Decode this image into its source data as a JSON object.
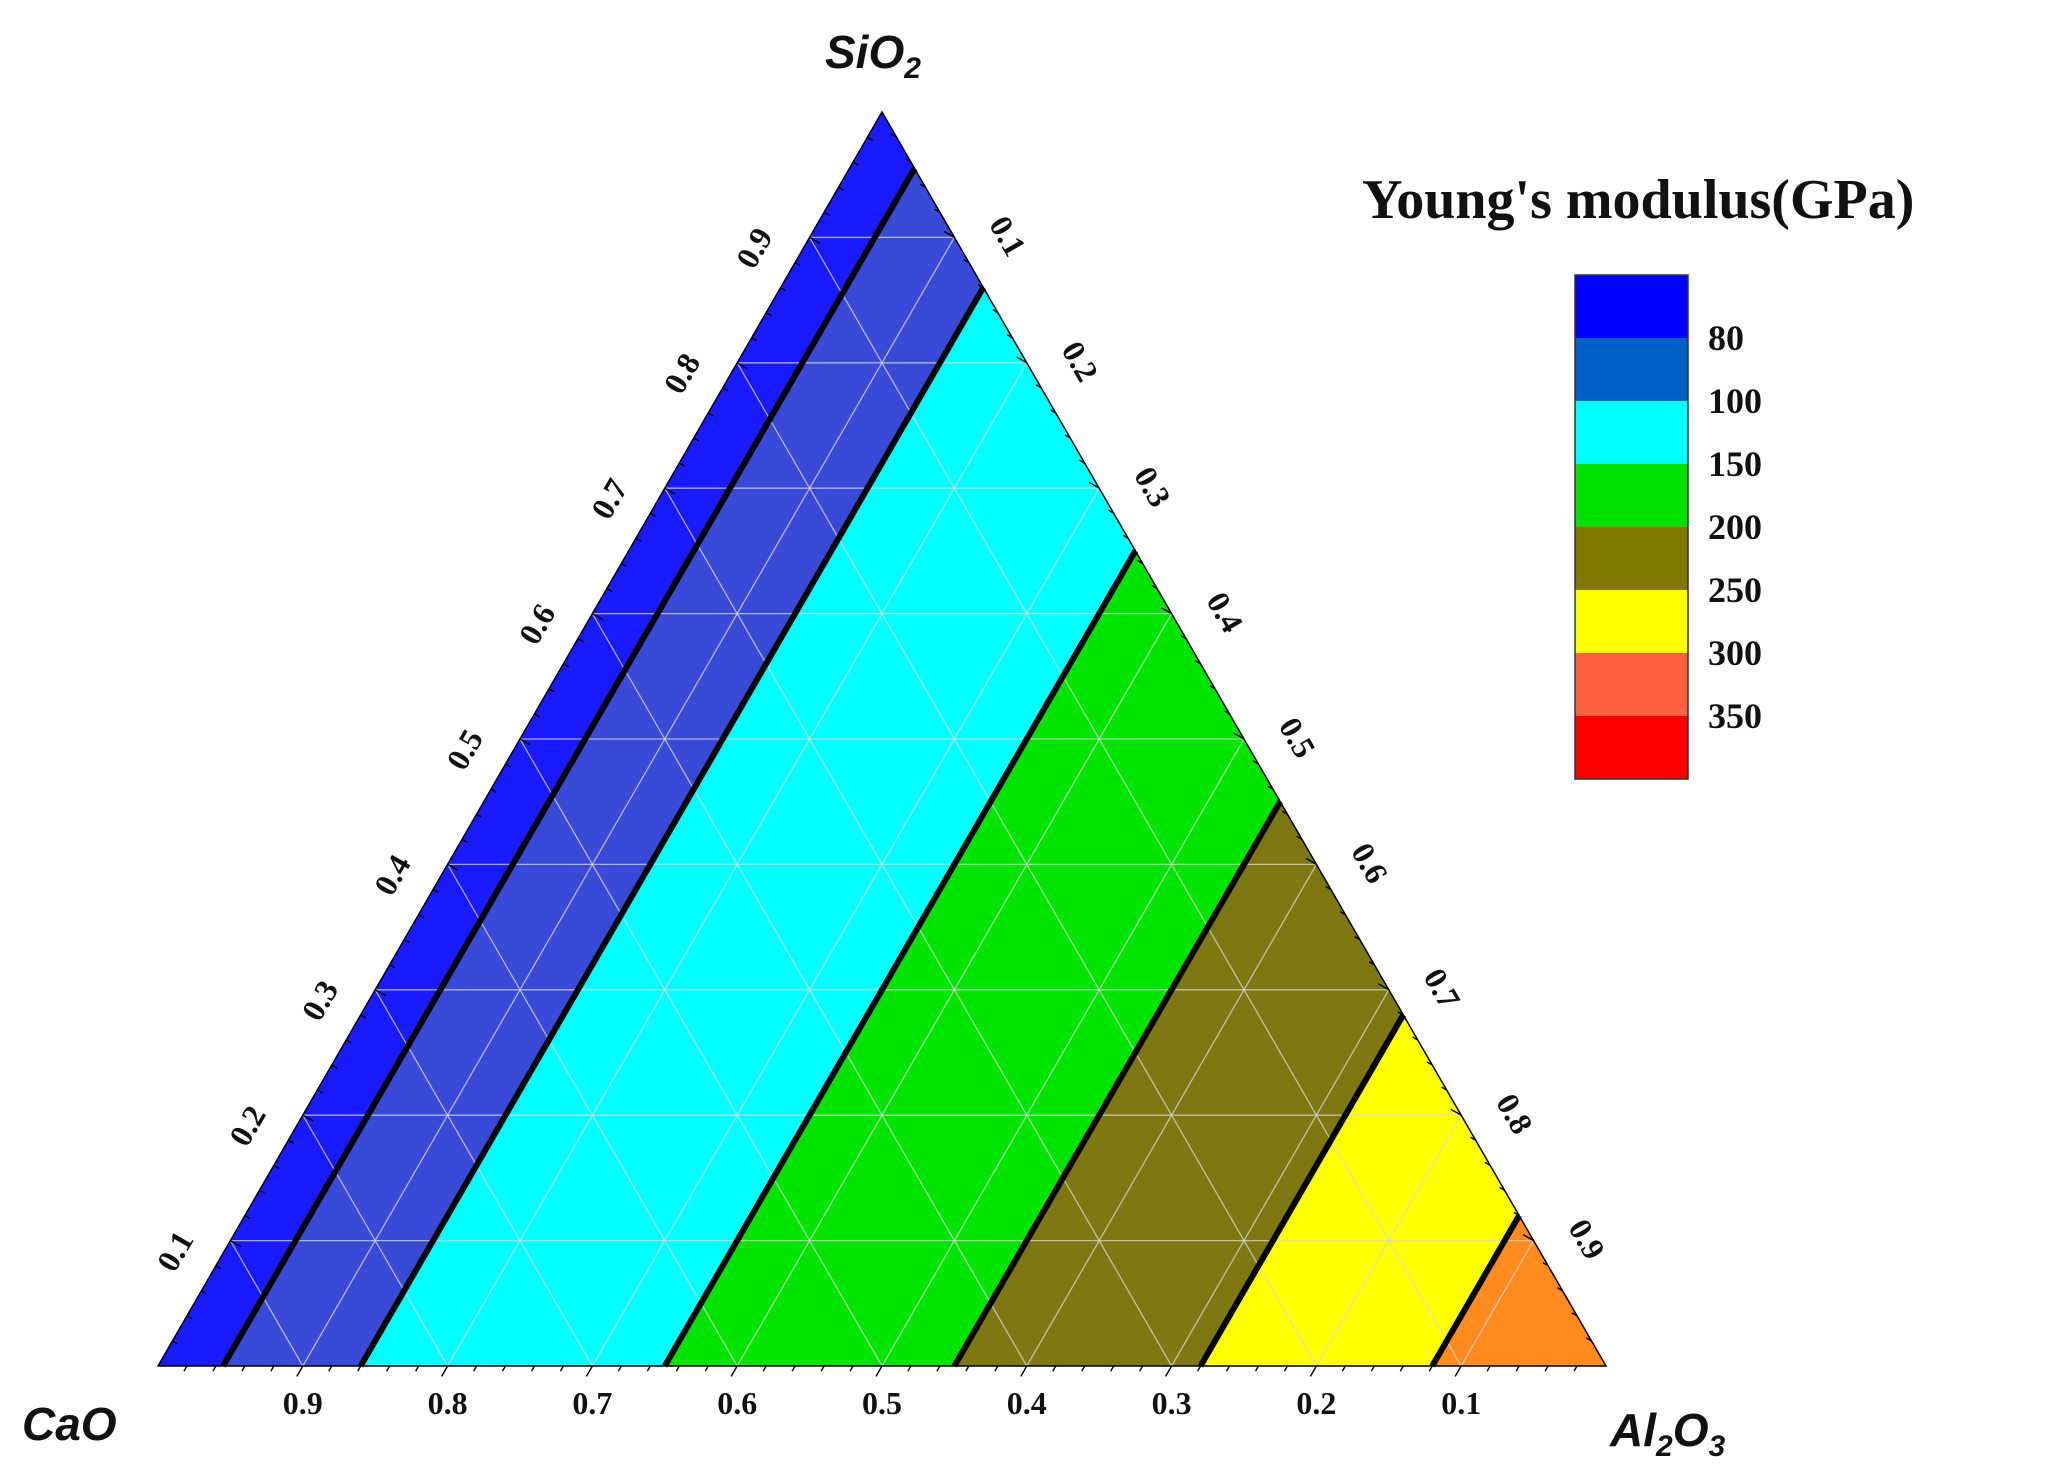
{
  "chart_data": {
    "type": "ternary",
    "apex_labels": {
      "top": {
        "base": "SiO",
        "sub": "2"
      },
      "left": {
        "base": "CaO",
        "sub": ""
      },
      "right": {
        "base": "Al",
        "sub": "2",
        "base2": "O",
        "sub2": "3"
      }
    },
    "tick_values": [
      0.1,
      0.2,
      0.3,
      0.4,
      0.5,
      0.6,
      0.7,
      0.8,
      0.9
    ],
    "left_edge_labels": [
      "0.1",
      "0.2",
      "0.3",
      "0.4",
      "0.5",
      "0.6",
      "0.7",
      "0.8",
      "0.9"
    ],
    "right_edge_labels": [
      "0.1",
      "0.2",
      "0.3",
      "0.4",
      "0.5",
      "0.6",
      "0.7",
      "0.8",
      "0.9"
    ],
    "bottom_edge_labels": [
      "0.9",
      "0.8",
      "0.7",
      "0.6",
      "0.5",
      "0.4",
      "0.3",
      "0.2",
      "0.1"
    ],
    "legend_title": "Young's modulus(GPa)",
    "legend": [
      {
        "label": "",
        "color": "#0000ff"
      },
      {
        "label": "80",
        "color": "#0060c8"
      },
      {
        "label": "100",
        "color": "#00ffff"
      },
      {
        "label": "150",
        "color": "#00e000"
      },
      {
        "label": "200",
        "color": "#807800"
      },
      {
        "label": "250",
        "color": "#ffff00"
      },
      {
        "label": "300",
        "color": "#ff6040"
      },
      {
        "label": "350",
        "color": "#ff0000"
      }
    ],
    "regions": [
      {
        "name": "<80",
        "al2o3_range": [
          0.0,
          0.045
        ],
        "color": "#1a1aff"
      },
      {
        "name": "80-100",
        "al2o3_range": [
          0.045,
          0.14
        ],
        "color": "#3a4ad8"
      },
      {
        "name": "100-150",
        "al2o3_range": [
          0.14,
          0.35
        ],
        "color": "#00ffff"
      },
      {
        "name": "150-200",
        "al2o3_range": [
          0.35,
          0.55
        ],
        "color": "#00e400"
      },
      {
        "name": "200-250",
        "al2o3_range": [
          0.55,
          0.72
        ],
        "color": "#7f7812"
      },
      {
        "name": "250-300",
        "al2o3_range": [
          0.72,
          0.88
        ],
        "color": "#ffff00"
      },
      {
        "name": "300-350",
        "al2o3_range": [
          0.88,
          1.0
        ],
        "color": "#ff8a1e"
      }
    ],
    "boundaries": [
      0.045,
      0.14,
      0.35,
      0.55,
      0.72,
      0.88
    ],
    "grid": true
  }
}
